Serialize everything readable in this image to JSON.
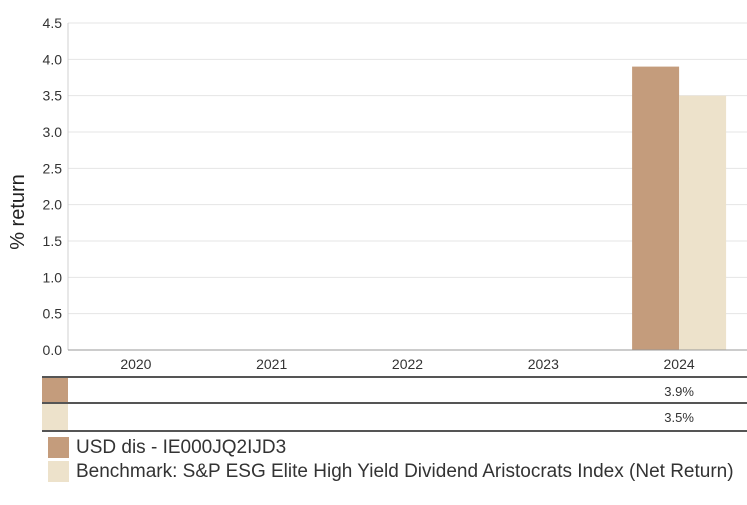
{
  "chart_data": {
    "type": "bar",
    "ylabel": "% return",
    "xlabel": "",
    "ylim": [
      0,
      4.5
    ],
    "yticks": [
      0.0,
      0.5,
      1.0,
      1.5,
      2.0,
      2.5,
      3.0,
      3.5,
      4.0,
      4.5
    ],
    "ytick_labels": [
      "0.0",
      "0.5",
      "1.0",
      "1.5",
      "2.0",
      "2.5",
      "3.0",
      "3.5",
      "4.0",
      "4.5"
    ],
    "categories": [
      "2020",
      "2021",
      "2022",
      "2023",
      "2024"
    ],
    "grid": true,
    "legend_placement": "bottom",
    "series": [
      {
        "name": "USD dis - IE000JQ2IJD3",
        "color": "#c49c7c",
        "values": [
          null,
          null,
          null,
          null,
          3.9
        ],
        "table_values": [
          "",
          "",
          "",
          "",
          "3.9%"
        ]
      },
      {
        "name": "Benchmark: S&P ESG Elite High Yield Dividend Aristocrats Index (Net Return)",
        "color": "#ede2cb",
        "values": [
          null,
          null,
          null,
          null,
          3.5
        ],
        "table_values": [
          "",
          "",
          "",
          "",
          "3.5%"
        ]
      }
    ]
  }
}
